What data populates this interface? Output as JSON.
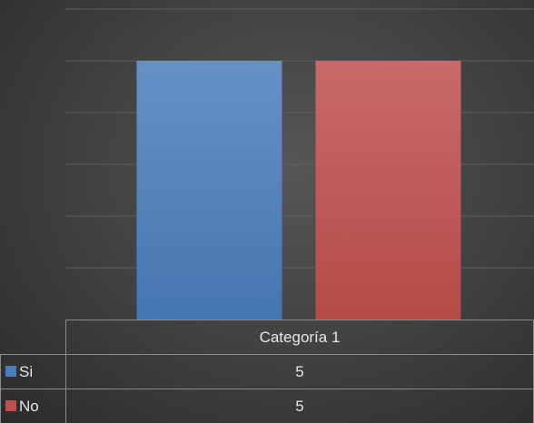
{
  "chart_data": {
    "type": "bar",
    "categories": [
      "Categoría 1"
    ],
    "series": [
      {
        "name": "Si",
        "values": [
          5
        ],
        "color": "#4a7ebb"
      },
      {
        "name": "No",
        "values": [
          5
        ],
        "color": "#c0504d"
      }
    ],
    "ylim": [
      0,
      6
    ],
    "gridlines": true,
    "data_table": true,
    "legend_keys_in_table": true
  },
  "colors": {
    "background": "#3f3f3f",
    "gridline": "#5e5e5e",
    "text": "#e6e6e6",
    "table_border": "#8a8a8a"
  }
}
